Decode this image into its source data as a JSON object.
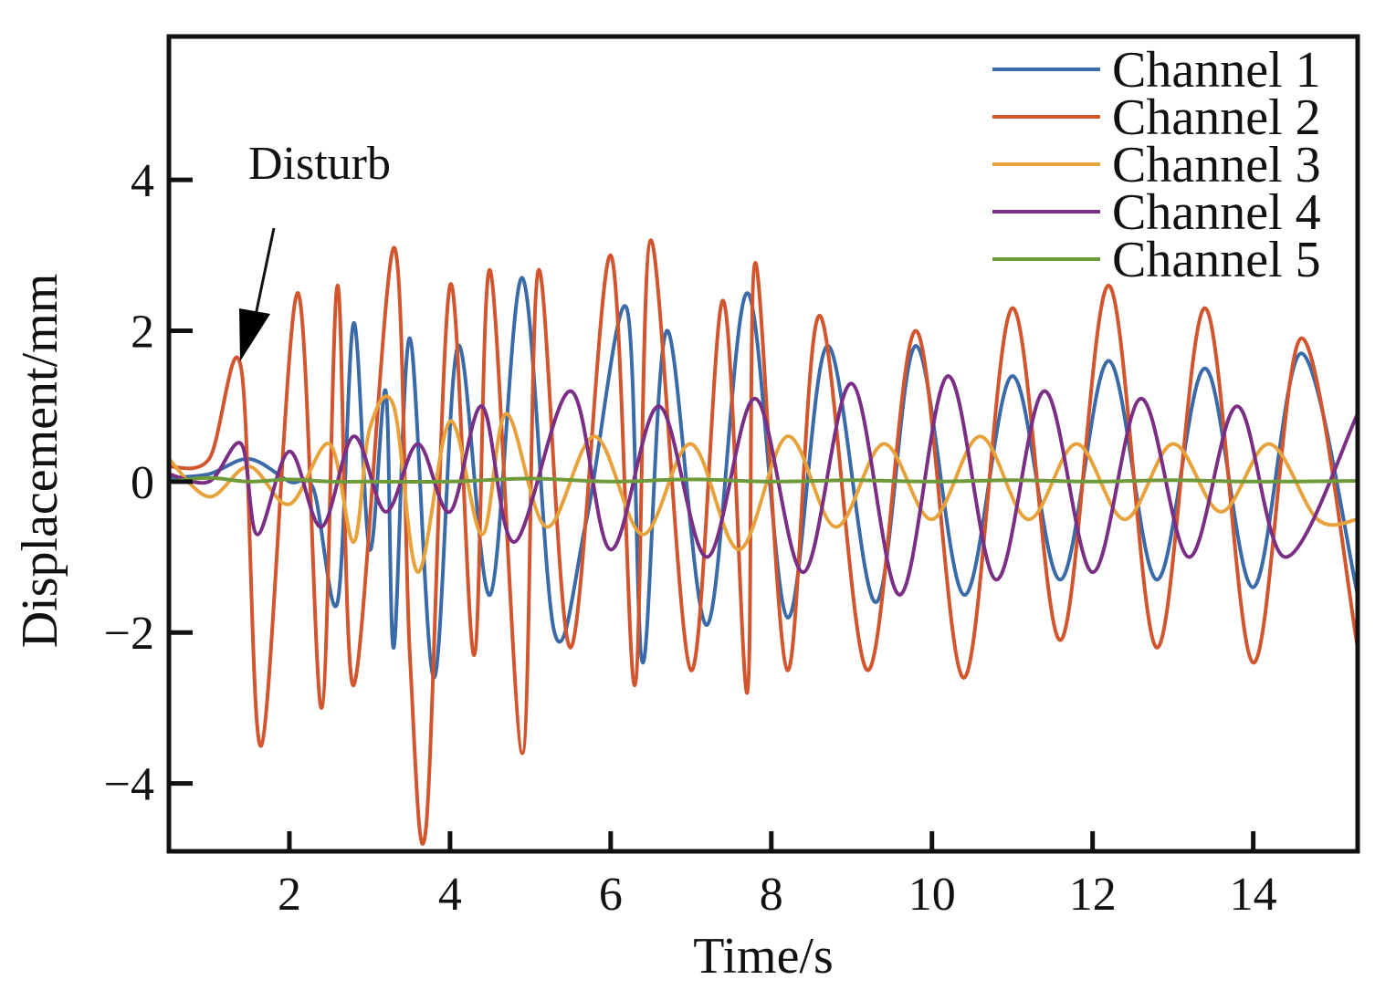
{
  "chart_data": {
    "type": "line",
    "title": "",
    "xlabel": "Time/s",
    "ylabel": "Displacement/mm",
    "xlim": [
      0.5,
      15.3
    ],
    "ylim": [
      -4.9,
      5.9
    ],
    "xticks": [
      2,
      4,
      6,
      8,
      10,
      12,
      14
    ],
    "yticks": [
      -4,
      -2,
      0,
      2,
      4
    ],
    "ytick_labels": [
      "−4",
      "−2",
      "0",
      "2",
      "4"
    ],
    "grid": false,
    "legend_position": "top-right",
    "annotation": {
      "text": "Disturb",
      "x": 1.4,
      "y": 1.6
    },
    "series": [
      {
        "name": "Channel 1",
        "color": "#3a6aa8",
        "points": [
          [
            0.5,
            0.05
          ],
          [
            1.0,
            0.1
          ],
          [
            1.5,
            0.3
          ],
          [
            2.0,
            0.0
          ],
          [
            2.3,
            -0.1
          ],
          [
            2.6,
            -1.6
          ],
          [
            2.8,
            2.1
          ],
          [
            3.0,
            -0.9
          ],
          [
            3.2,
            1.2
          ],
          [
            3.3,
            -2.2
          ],
          [
            3.5,
            1.9
          ],
          [
            3.8,
            -2.6
          ],
          [
            4.1,
            1.8
          ],
          [
            4.5,
            -1.5
          ],
          [
            4.9,
            2.7
          ],
          [
            5.3,
            -2.0
          ],
          [
            5.7,
            -0.5
          ],
          [
            6.2,
            2.3
          ],
          [
            6.4,
            -2.4
          ],
          [
            6.7,
            2.0
          ],
          [
            7.2,
            -1.9
          ],
          [
            7.7,
            2.5
          ],
          [
            8.2,
            -1.8
          ],
          [
            8.7,
            1.8
          ],
          [
            9.3,
            -1.6
          ],
          [
            9.8,
            1.8
          ],
          [
            10.4,
            -1.5
          ],
          [
            11.0,
            1.4
          ],
          [
            11.6,
            -1.3
          ],
          [
            12.2,
            1.6
          ],
          [
            12.8,
            -1.3
          ],
          [
            13.4,
            1.5
          ],
          [
            14.0,
            -1.4
          ],
          [
            14.6,
            1.7
          ],
          [
            15.3,
            -1.5
          ]
        ]
      },
      {
        "name": "Channel 2",
        "color": "#d2552d",
        "points": [
          [
            0.5,
            0.2
          ],
          [
            1.0,
            0.3
          ],
          [
            1.4,
            1.5
          ],
          [
            1.65,
            -3.5
          ],
          [
            2.1,
            2.5
          ],
          [
            2.4,
            -3.0
          ],
          [
            2.6,
            2.6
          ],
          [
            2.8,
            -2.7
          ],
          [
            3.3,
            3.1
          ],
          [
            3.5,
            -2.3
          ],
          [
            3.7,
            -4.6
          ],
          [
            4.0,
            2.6
          ],
          [
            4.3,
            -2.3
          ],
          [
            4.5,
            2.8
          ],
          [
            4.9,
            -3.6
          ],
          [
            5.1,
            2.8
          ],
          [
            5.5,
            -2.2
          ],
          [
            6.0,
            3.0
          ],
          [
            6.3,
            -2.7
          ],
          [
            6.5,
            3.2
          ],
          [
            7.0,
            -2.5
          ],
          [
            7.4,
            2.4
          ],
          [
            7.7,
            -2.8
          ],
          [
            7.8,
            2.9
          ],
          [
            8.2,
            -2.5
          ],
          [
            8.6,
            2.2
          ],
          [
            9.2,
            -2.5
          ],
          [
            9.8,
            2.0
          ],
          [
            10.4,
            -2.6
          ],
          [
            11.0,
            2.3
          ],
          [
            11.6,
            -2.1
          ],
          [
            12.2,
            2.6
          ],
          [
            12.8,
            -2.2
          ],
          [
            13.4,
            2.3
          ],
          [
            14.0,
            -2.4
          ],
          [
            14.6,
            1.9
          ],
          [
            15.3,
            -2.2
          ]
        ]
      },
      {
        "name": "Channel 3",
        "color": "#e7a23b",
        "points": [
          [
            0.5,
            0.3
          ],
          [
            1.0,
            -0.2
          ],
          [
            1.5,
            0.2
          ],
          [
            2.0,
            -0.3
          ],
          [
            2.5,
            0.5
          ],
          [
            2.8,
            -0.8
          ],
          [
            3.0,
            0.7
          ],
          [
            3.3,
            1.0
          ],
          [
            3.6,
            -1.2
          ],
          [
            4.0,
            0.8
          ],
          [
            4.4,
            -0.7
          ],
          [
            4.7,
            0.9
          ],
          [
            5.2,
            -0.6
          ],
          [
            5.8,
            0.6
          ],
          [
            6.4,
            -0.7
          ],
          [
            7.0,
            0.5
          ],
          [
            7.6,
            -0.9
          ],
          [
            8.2,
            0.6
          ],
          [
            8.8,
            -0.6
          ],
          [
            9.4,
            0.5
          ],
          [
            10.0,
            -0.5
          ],
          [
            10.6,
            0.6
          ],
          [
            11.2,
            -0.5
          ],
          [
            11.8,
            0.5
          ],
          [
            12.4,
            -0.5
          ],
          [
            13.0,
            0.5
          ],
          [
            13.6,
            -0.4
          ],
          [
            14.2,
            0.5
          ],
          [
            14.8,
            -0.5
          ],
          [
            15.3,
            -0.5
          ]
        ]
      },
      {
        "name": "Channel 4",
        "color": "#7a2f85",
        "points": [
          [
            0.5,
            0.1
          ],
          [
            1.0,
            0.0
          ],
          [
            1.4,
            0.5
          ],
          [
            1.6,
            -0.7
          ],
          [
            2.0,
            0.4
          ],
          [
            2.4,
            -0.6
          ],
          [
            2.8,
            0.6
          ],
          [
            3.2,
            -0.4
          ],
          [
            3.6,
            0.5
          ],
          [
            4.0,
            -0.4
          ],
          [
            4.4,
            1.0
          ],
          [
            4.8,
            -0.8
          ],
          [
            5.5,
            1.2
          ],
          [
            6.0,
            -0.9
          ],
          [
            6.6,
            1.0
          ],
          [
            7.2,
            -1.0
          ],
          [
            7.8,
            1.1
          ],
          [
            8.4,
            -1.2
          ],
          [
            9.0,
            1.3
          ],
          [
            9.6,
            -1.5
          ],
          [
            10.2,
            1.4
          ],
          [
            10.8,
            -1.3
          ],
          [
            11.4,
            1.2
          ],
          [
            12.0,
            -1.2
          ],
          [
            12.6,
            1.1
          ],
          [
            13.2,
            -1.0
          ],
          [
            13.8,
            1.0
          ],
          [
            14.4,
            -1.0
          ],
          [
            15.3,
            0.9
          ]
        ]
      },
      {
        "name": "Channel 5",
        "color": "#6e9a3a",
        "points": [
          [
            0.5,
            0.0
          ],
          [
            1.0,
            0.05
          ],
          [
            1.5,
            0.0
          ],
          [
            2.0,
            0.03
          ],
          [
            2.5,
            0.0
          ],
          [
            3.0,
            0.0
          ],
          [
            4.0,
            0.0
          ],
          [
            5.0,
            0.04
          ],
          [
            6.0,
            0.0
          ],
          [
            7.0,
            0.03
          ],
          [
            8.0,
            0.0
          ],
          [
            9.0,
            0.02
          ],
          [
            10.0,
            0.0
          ],
          [
            11.0,
            0.02
          ],
          [
            12.0,
            0.0
          ],
          [
            13.0,
            0.02
          ],
          [
            14.0,
            0.0
          ],
          [
            15.3,
            0.01
          ]
        ]
      }
    ]
  }
}
